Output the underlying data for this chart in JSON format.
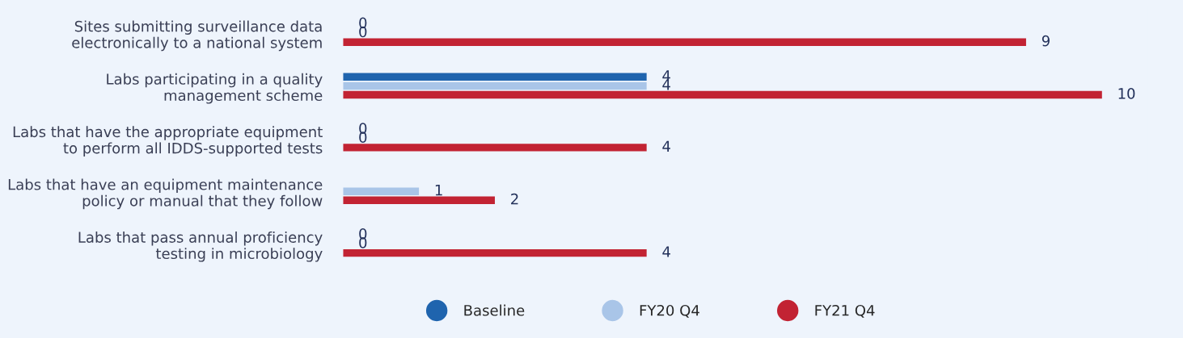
{
  "chart_data": {
    "type": "bar",
    "orientation": "horizontal",
    "data_labels": true,
    "legend": "bottom",
    "grid": false,
    "tick_labels": "y",
    "categories": [
      "Sites submitting surveillance data\nelectronically to a national system",
      "Labs participating in a quality\nmanagement scheme",
      "Labs that have the appropriate equipment\nto perform all IDDS-supported tests",
      "Labs that have an equipment maintenance\npolicy or manual that they follow",
      "Labs that pass annual proficiency\ntesting in microbiology"
    ],
    "series": [
      {
        "name": "Baseline",
        "color": "#1f64ae",
        "values": [
          0,
          4,
          0,
          null,
          0
        ]
      },
      {
        "name": "FY20 Q4",
        "color": "#a9c5e8",
        "values": [
          0,
          4,
          0,
          1,
          0
        ]
      },
      {
        "name": "FY21 Q4",
        "color": "#c22333",
        "values": [
          9,
          10,
          4,
          2,
          4
        ]
      }
    ]
  }
}
